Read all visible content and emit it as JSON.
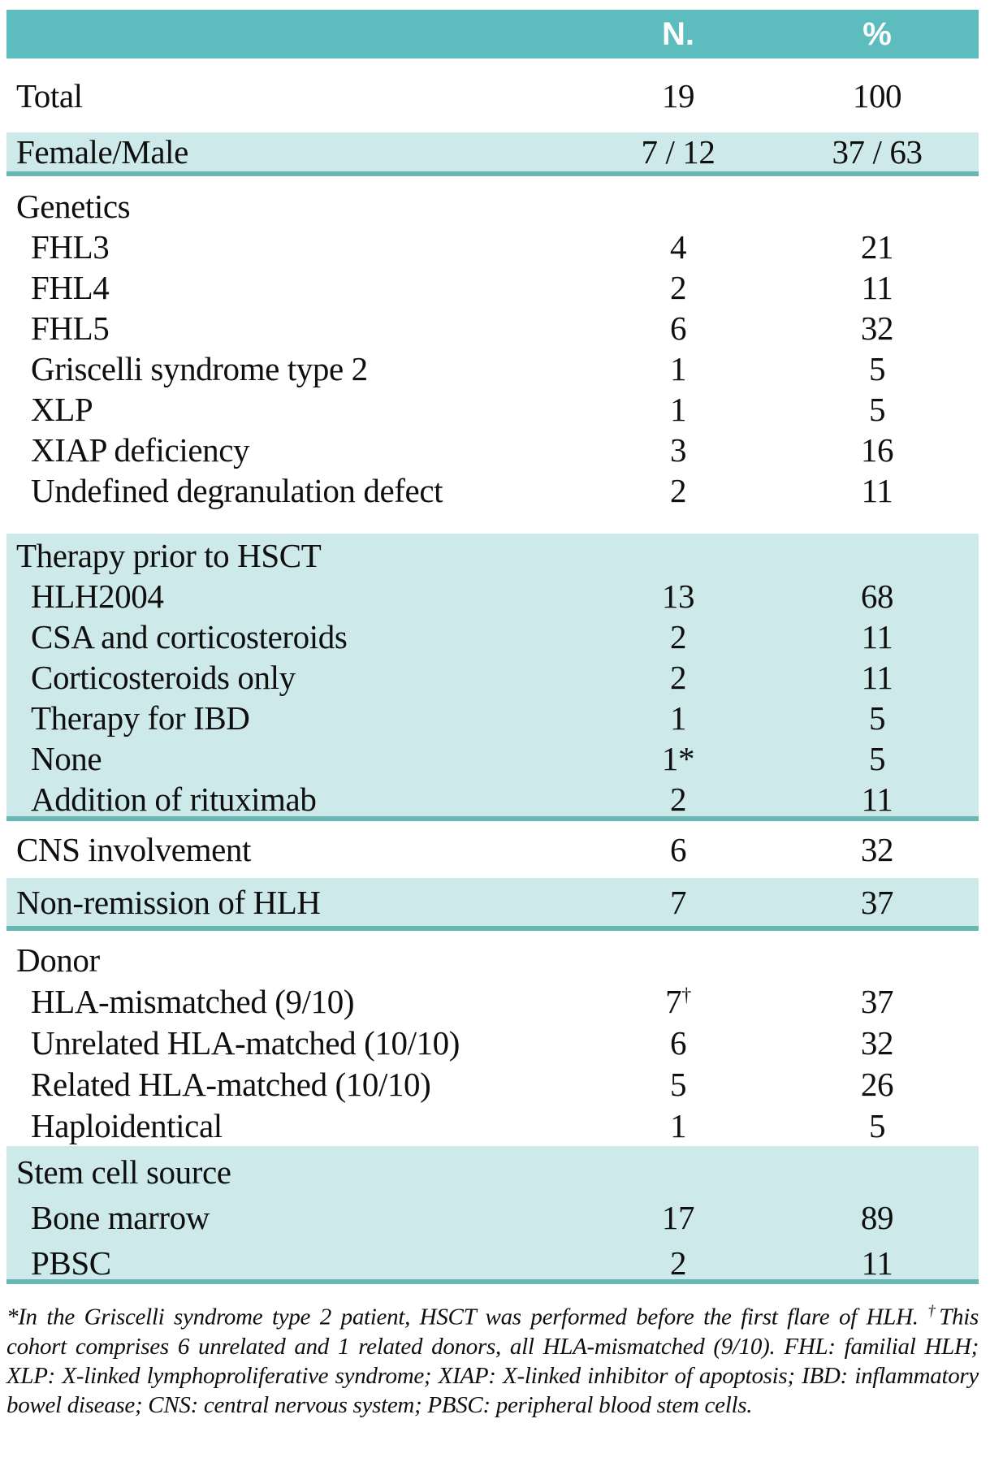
{
  "colors": {
    "header_bg": "#5cbcbe",
    "band_bg": "#cde9e9",
    "rule": "#67b7b5",
    "header_text": "#ffffff",
    "text": "#0f0f0f"
  },
  "table": {
    "columns": [
      "N.",
      "%"
    ],
    "sections": [
      {
        "shade": "white",
        "rule": false,
        "rows": [
          {
            "label": "Total",
            "indent": 0,
            "n": "19",
            "pct": "100"
          }
        ]
      },
      {
        "shade": "teal",
        "rule": true,
        "rows": [
          {
            "label": "Female/Male",
            "indent": 0,
            "n": "7 / 12",
            "pct": "37 / 63"
          }
        ]
      },
      {
        "shade": "white",
        "rule": false,
        "rows": [
          {
            "label": "Genetics",
            "indent": 0,
            "n": "",
            "pct": ""
          },
          {
            "label": "FHL3",
            "indent": 1,
            "n": "4",
            "pct": "21"
          },
          {
            "label": "FHL4",
            "indent": 1,
            "n": "2",
            "pct": "11"
          },
          {
            "label": "FHL5",
            "indent": 1,
            "n": "6",
            "pct": "32"
          },
          {
            "label": "Griscelli syndrome type 2",
            "indent": 1,
            "n": "1",
            "pct": "5"
          },
          {
            "label": "XLP",
            "indent": 1,
            "n": "1",
            "pct": "5"
          },
          {
            "label": "XIAP deficiency",
            "indent": 1,
            "n": "3",
            "pct": "16"
          },
          {
            "label": "Undefined degranulation defect",
            "indent": 1,
            "n": "2",
            "pct": "11"
          }
        ]
      },
      {
        "shade": "teal",
        "rule": true,
        "rows": [
          {
            "label": "Therapy prior to HSCT",
            "indent": 0,
            "n": "",
            "pct": ""
          },
          {
            "label": "HLH2004",
            "indent": 1,
            "n": "13",
            "pct": "68"
          },
          {
            "label": "CSA and corticosteroids",
            "indent": 1,
            "n": "2",
            "pct": "11"
          },
          {
            "label": "Corticosteroids only",
            "indent": 1,
            "n": "2",
            "pct": "11"
          },
          {
            "label": "Therapy for IBD",
            "indent": 1,
            "n": "1",
            "pct": "5"
          },
          {
            "label": "None",
            "indent": 1,
            "n": "1*",
            "pct": "5"
          },
          {
            "label": "Addition of rituximab",
            "indent": 1,
            "n": "2",
            "pct": "11"
          }
        ]
      },
      {
        "shade": "white",
        "rule": false,
        "rows": [
          {
            "label": "CNS involvement",
            "indent": 0,
            "n": "6",
            "pct": "32"
          }
        ]
      },
      {
        "shade": "teal",
        "rule": true,
        "rows": [
          {
            "label": "Non-remission of HLH",
            "indent": 0,
            "n": "7",
            "pct": "37"
          }
        ]
      },
      {
        "shade": "white",
        "rule": false,
        "rows": [
          {
            "label": "Donor",
            "indent": 0,
            "n": "",
            "pct": ""
          },
          {
            "label": "HLA-mismatched (9/10)",
            "indent": 1,
            "n": "7",
            "n_sup": "†",
            "pct": "37"
          },
          {
            "label": "Unrelated HLA-matched (10/10)",
            "indent": 1,
            "n": "6",
            "pct": "32"
          },
          {
            "label": "Related HLA-matched (10/10)",
            "indent": 1,
            "n": "5",
            "pct": "26"
          },
          {
            "label": "Haploidentical",
            "indent": 1,
            "n": "1",
            "pct": "5"
          }
        ]
      },
      {
        "shade": "teal",
        "rule": true,
        "rows": [
          {
            "label": "Stem cell source",
            "indent": 0,
            "n": "",
            "pct": ""
          },
          {
            "label": "Bone marrow",
            "indent": 1,
            "n": "17",
            "pct": "89"
          },
          {
            "label": "PBSC",
            "indent": 1,
            "n": "2",
            "pct": "11"
          }
        ]
      }
    ]
  },
  "footnote": {
    "part1": "*In the Griscelli syndrome type 2 patient, HSCT was performed before the first flare of HLH. ",
    "dagger": "†",
    "part2": "This cohort comprises 6 unrelated and 1 related donors, all HLA-mismatched (9/10). FHL: familial HLH; XLP: X-linked lymphoproliferative syndrome; XIAP: X-linked inhibitor of apoptosis; IBD: inflammatory bowel disease; CNS: central nervous system; PBSC: peripheral blood stem cells."
  }
}
